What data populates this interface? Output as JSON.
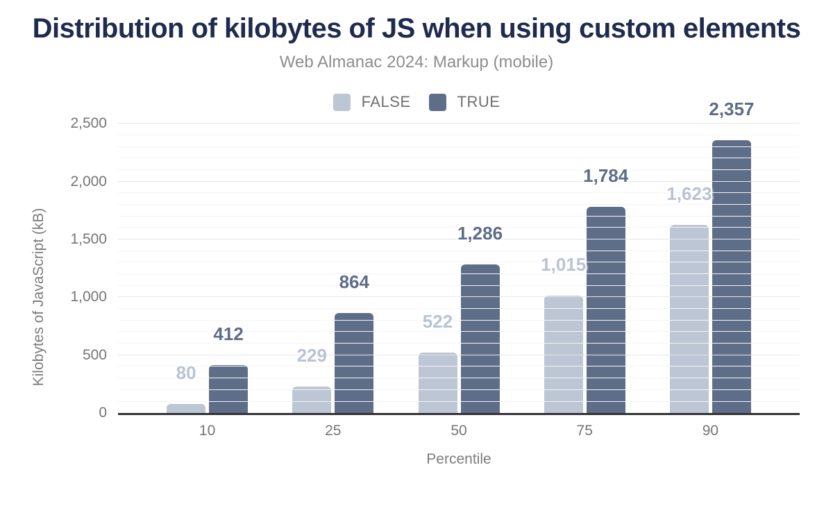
{
  "title": "Distribution of kilobytes of JS when using custom elements",
  "subtitle": "Web Almanac 2024: Markup (mobile)",
  "legend": [
    {
      "label": "FALSE",
      "color": "#bcc6d4"
    },
    {
      "label": "TRUE",
      "color": "#5f6e88"
    }
  ],
  "chart_data": {
    "type": "bar",
    "grouped": true,
    "title": "Distribution of kilobytes of JS when using custom elements",
    "subtitle": "Web Almanac 2024: Markup (mobile)",
    "categories": [
      "10",
      "25",
      "50",
      "75",
      "90"
    ],
    "series": [
      {
        "name": "FALSE",
        "color": "#bcc6d4",
        "label_color": "#b9c3d3",
        "values": [
          80,
          229,
          522,
          1015,
          1623
        ],
        "labels": [
          "80",
          "229",
          "522",
          "1,015",
          "1,623"
        ]
      },
      {
        "name": "TRUE",
        "color": "#5f6e88",
        "label_color": "#5d6c88",
        "values": [
          412,
          864,
          1286,
          1784,
          2357
        ],
        "labels": [
          "412",
          "864",
          "1,286",
          "1,784",
          "2,357"
        ]
      }
    ],
    "xlabel": "Percentile",
    "ylabel": "Kilobytes of JavaScript (kB)",
    "ylim": [
      0,
      2500
    ],
    "yticks": [
      {
        "value": 0,
        "label": "0"
      },
      {
        "value": 500,
        "label": "500"
      },
      {
        "value": 1000,
        "label": "1,000"
      },
      {
        "value": 1500,
        "label": "1,500"
      },
      {
        "value": 2000,
        "label": "2,000"
      },
      {
        "value": 2500,
        "label": "2,500"
      }
    ],
    "minor_grid_step": 100,
    "major_grid_step": 500,
    "grid": true,
    "legend_position": "top"
  },
  "colors": {
    "title": "#1e2b4e",
    "subtitle": "#8d8d8d",
    "tick": "#757575",
    "axis_title": "#7c7c7c",
    "legend_text": "#6f6f6f",
    "axis_line": "#333333",
    "grid_major": "#e7e7ea",
    "grid_minor": "#f4f4f6"
  }
}
